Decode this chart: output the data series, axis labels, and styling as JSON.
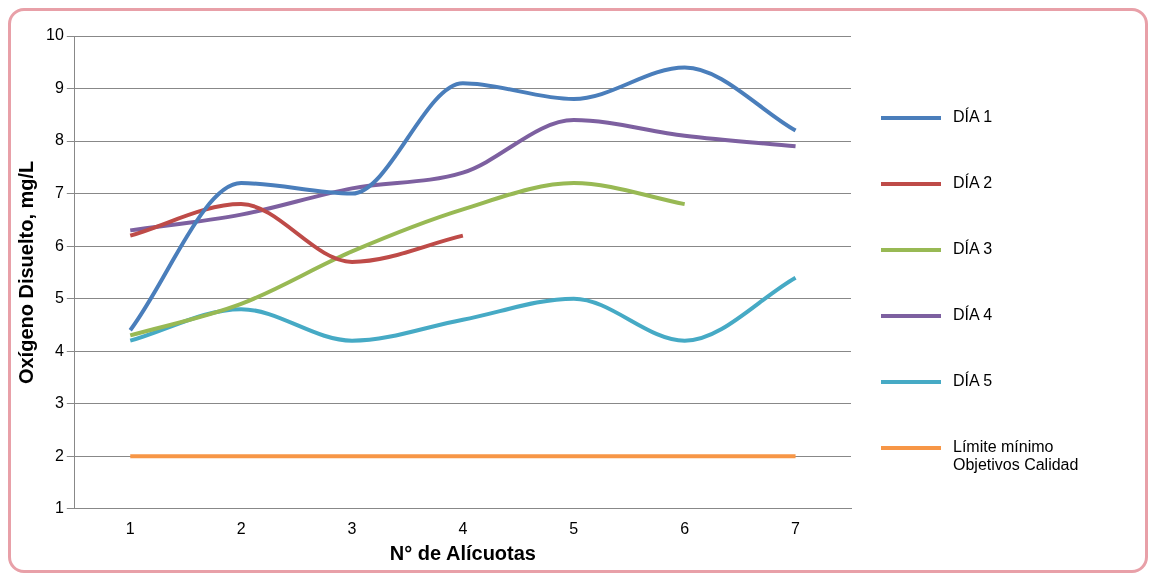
{
  "chart_data": {
    "type": "line",
    "xlabel": "N° de Alícuotas",
    "ylabel": "Oxígeno Disuelto, mg/L",
    "categories": [
      "1",
      "2",
      "3",
      "4",
      "5",
      "6",
      "7"
    ],
    "series": [
      {
        "name": "DÍA 1",
        "color": "#4a7ebb",
        "values": [
          4.4,
          7.2,
          7.0,
          9.1,
          8.8,
          9.4,
          8.2
        ]
      },
      {
        "name": "DÍA 2",
        "color": "#be4b48",
        "values": [
          6.2,
          6.8,
          5.7,
          6.2,
          null,
          null,
          null
        ]
      },
      {
        "name": "DÍA 3",
        "color": "#98b954",
        "values": [
          4.3,
          4.9,
          5.9,
          6.7,
          7.2,
          6.8,
          null
        ]
      },
      {
        "name": "DÍA 4",
        "color": "#7d60a0",
        "values": [
          6.3,
          6.6,
          7.1,
          7.4,
          8.4,
          8.1,
          7.9
        ]
      },
      {
        "name": "DÍA 5",
        "color": "#46aac5",
        "values": [
          4.2,
          4.8,
          4.2,
          4.6,
          5.0,
          4.2,
          5.4
        ]
      },
      {
        "name": "Límite mínimo Objetivos Calidad",
        "color": "#f79646",
        "values": [
          2,
          2,
          2,
          2,
          2,
          2,
          2
        ]
      }
    ],
    "ylim": [
      1,
      10
    ],
    "yticks": [
      1,
      2,
      3,
      4,
      5,
      6,
      7,
      8,
      9,
      10
    ],
    "grid": "y",
    "legend": "right",
    "marker": "none"
  }
}
